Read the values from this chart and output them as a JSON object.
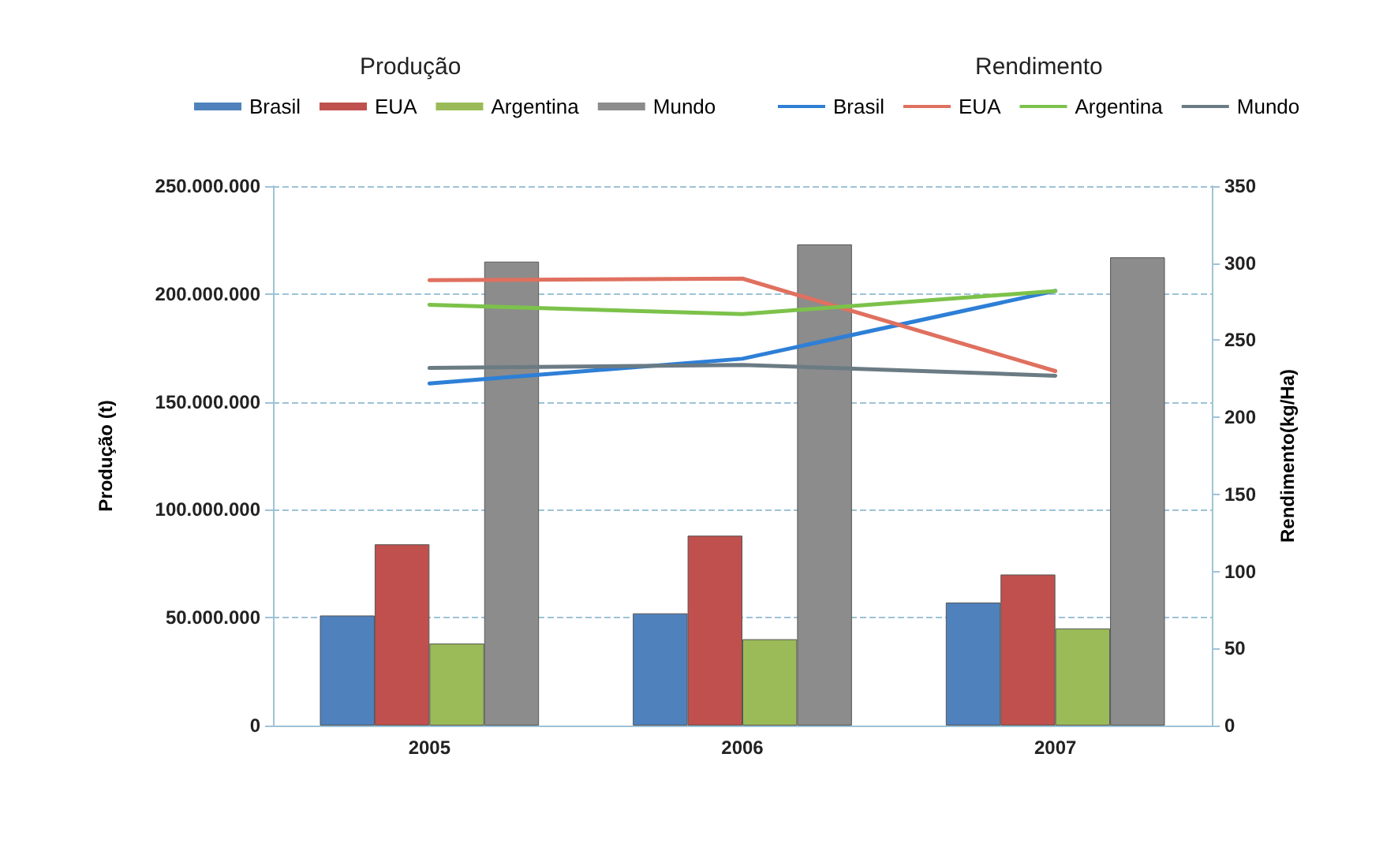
{
  "chart_data": {
    "type": "bar",
    "categories": [
      "2005",
      "2006",
      "2007"
    ],
    "ylabel": "Produção (t)",
    "y2label": "Rendimento(kg/Ha)",
    "annotations": [
      "Produção",
      "Rendimento"
    ],
    "series": [
      {
        "name": "Brasil",
        "color": "#4f81bd",
        "values": [
          51000000,
          52000000,
          57000000
        ]
      },
      {
        "name": "EUA",
        "color": "#c0504d",
        "values": [
          84000000,
          88000000,
          70000000
        ]
      },
      {
        "name": "Argentina",
        "color": "#9bbb59",
        "values": [
          38000000,
          40000000,
          45000000
        ]
      },
      {
        "name": "Mundo",
        "color": "#8c8c8c",
        "values": [
          215000000,
          223000000,
          217000000
        ]
      },
      {
        "name": "Brasil",
        "type": "line",
        "axis": "y2",
        "color": "#2e7fd6",
        "values": [
          222,
          238,
          282
        ]
      },
      {
        "name": "EUA",
        "type": "line",
        "axis": "y2",
        "color": "#e0705f",
        "values": [
          289,
          290,
          230
        ]
      },
      {
        "name": "Argentina",
        "type": "line",
        "axis": "y2",
        "color": "#7cc24a",
        "values": [
          273,
          267,
          282
        ]
      },
      {
        "name": "Mundo",
        "type": "line",
        "axis": "y2",
        "color": "#6b7b84",
        "values": [
          232,
          234,
          227
        ]
      }
    ],
    "ylim": [
      0,
      250000000
    ],
    "yticks": [
      {
        "value": 0,
        "label": "0"
      },
      {
        "value": 50000000,
        "label": "50.000.000"
      },
      {
        "value": 100000000,
        "label": "100.000.000"
      },
      {
        "value": 150000000,
        "label": "150.000.000"
      },
      {
        "value": 200000000,
        "label": "200.000.000"
      },
      {
        "value": 250000000,
        "label": "250.000.000"
      }
    ],
    "y2lim": [
      0,
      350
    ],
    "y2ticks": [
      0,
      50,
      100,
      150,
      200,
      250,
      300,
      350
    ],
    "grid": "y",
    "legend": "top",
    "marker": "none",
    "line_style": "solid"
  }
}
